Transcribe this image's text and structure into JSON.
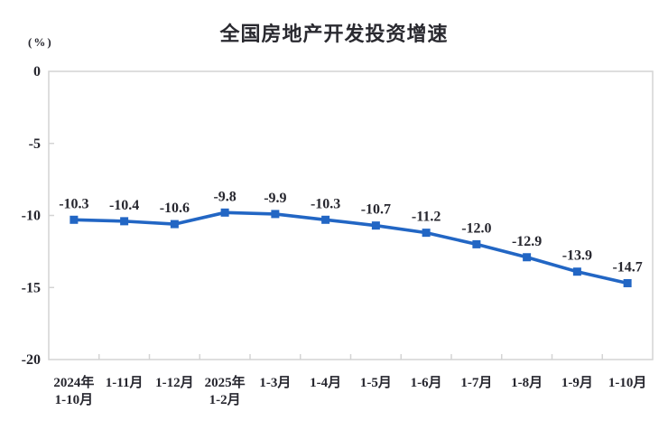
{
  "chart_data": {
    "type": "line",
    "title": "全国房地产开发投资增速",
    "ylabel": "(%)",
    "xlabel": "",
    "categories": [
      [
        "2024年",
        "1-10月"
      ],
      [
        "1-11月"
      ],
      [
        "1-12月"
      ],
      [
        "2025年",
        "1-2月"
      ],
      [
        "1-3月"
      ],
      [
        "1-4月"
      ],
      [
        "1-5月"
      ],
      [
        "1-6月"
      ],
      [
        "1-7月"
      ],
      [
        "1-8月"
      ],
      [
        "1-9月"
      ],
      [
        "1-10月"
      ]
    ],
    "series": [
      {
        "name": "全国房地产开发投资增速",
        "values": [
          -10.3,
          -10.4,
          -10.6,
          -9.8,
          -9.9,
          -10.3,
          -10.7,
          -11.2,
          -12.0,
          -12.9,
          -13.9,
          -14.7
        ]
      }
    ],
    "data_labels": [
      "-10.3",
      "-10.4",
      "-10.6",
      "-9.8",
      "-9.9",
      "-10.3",
      "-10.7",
      "-11.2",
      "-12.0",
      "-12.9",
      "-13.9",
      "-14.7"
    ],
    "ylim": [
      -20,
      0
    ],
    "yticks": [
      0,
      -5,
      -10,
      -15,
      -20
    ],
    "ytick_labels": [
      "0",
      "-5",
      "-10",
      "-15",
      "-20"
    ],
    "grid": false,
    "legend": "none",
    "line_color": "#2266C4",
    "marker": "square",
    "axis_color": "#D4D4D4",
    "text_color": "#26262E"
  }
}
